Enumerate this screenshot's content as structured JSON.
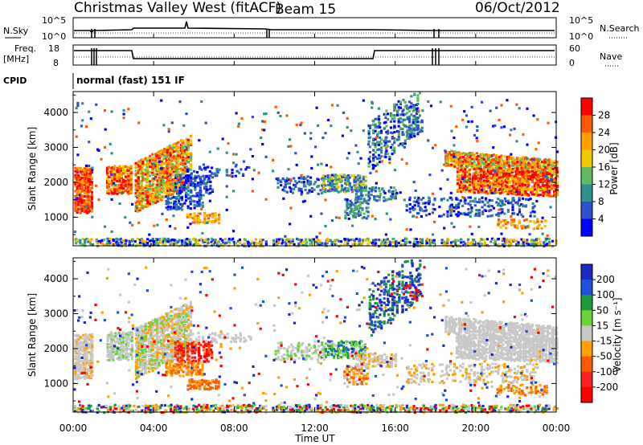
{
  "header": {
    "title": "Christmas Valley West (fitACF)",
    "beam": "Beam 15",
    "date": "06/Oct/2012"
  },
  "top_panels": {
    "nsky_label": "N.Sky",
    "nsky_ticks": [
      "10^5",
      "10^0"
    ],
    "nsearch_label": "N.Search",
    "nsearch_ticks": [
      "10^5",
      "10^0"
    ],
    "freq_label": "Freq.",
    "freq_unit": "[MHz]",
    "freq_ticks": [
      "18",
      "8"
    ],
    "nave_label": "Nave",
    "nave_ticks": [
      "60",
      "0"
    ],
    "cpid_label": "CPID",
    "cpid_value": "normal (fast) 151 IF"
  },
  "chart_data": [
    {
      "type": "heatmap",
      "name": "power",
      "ylabel": "Slant Range [km]",
      "yticks": [
        "1000",
        "2000",
        "3000",
        "4000"
      ],
      "colorbar_label": "Power [dB]",
      "colorbar_ticks": [
        "28",
        "24",
        "20",
        "16",
        "12",
        "8",
        "4"
      ],
      "colorbar_colors": [
        "#ff0000",
        "#ff5a00",
        "#ffa000",
        "#f0c800",
        "#5fb95f",
        "#2f8f8f",
        "#3050d0",
        "#0000ff"
      ]
    },
    {
      "type": "heatmap",
      "name": "velocity",
      "ylabel": "Slant Range [km]",
      "yticks": [
        "1000",
        "2000",
        "3000",
        "4000"
      ],
      "colorbar_label": "Velocity [m s⁻¹]",
      "colorbar_ticks": [
        "200",
        "100",
        "50",
        "15",
        "-15",
        "-50",
        "-100",
        "-200"
      ],
      "colorbar_colors": [
        "#1e28c8",
        "#2050e0",
        "#1e9c3c",
        "#6cd23c",
        "#c8c8c8",
        "#ffa000",
        "#ff5a00",
        "#ff2020",
        "#ff0000"
      ]
    }
  ],
  "x_axis": {
    "ticks": [
      "00:00",
      "04:00",
      "08:00",
      "12:00",
      "16:00",
      "20:00",
      "00:00"
    ],
    "label": "Time UT"
  }
}
